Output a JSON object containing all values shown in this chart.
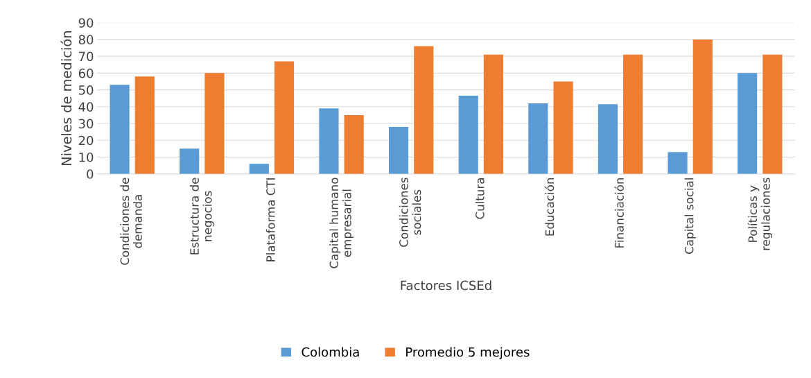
{
  "chart_data": {
    "type": "bar",
    "xlabel": "Factores ICSEd",
    "ylabel": "Niveles de medición",
    "categories": [
      "Condiciones de\ndemanda",
      "Estructura de\nnegocios",
      "Plataforma CTI",
      "Capital humano\nempresarial",
      "Condiciones\nsociales",
      "Cultura",
      "Educación",
      "Financiación",
      "Capital social",
      "Políticas y\nregulaciones"
    ],
    "series": [
      {
        "name": "Colombia",
        "color": "#5b9bd5",
        "values": [
          53,
          15,
          6,
          39,
          28,
          46.5,
          42,
          41.5,
          13,
          60
        ]
      },
      {
        "name": "Promedio 5 mejores",
        "color": "#ed7d31",
        "values": [
          58,
          60,
          67,
          35,
          76,
          71,
          55,
          71,
          80,
          71
        ]
      }
    ],
    "ylim": [
      0,
      90
    ],
    "yticks": [
      0,
      10,
      20,
      30,
      40,
      50,
      60,
      70,
      80,
      90
    ],
    "grid": "y",
    "legend": "bottom"
  }
}
